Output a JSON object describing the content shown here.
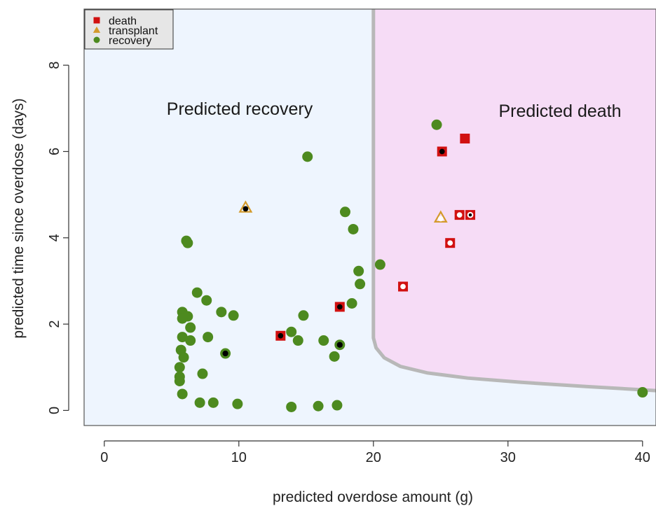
{
  "chart_data": {
    "type": "scatter",
    "xlabel": "predicted overdose amount (g)",
    "ylabel": "predicted time since overdose (days)",
    "xlim": [
      -1.5,
      41
    ],
    "ylim": [
      -0.35,
      9.3
    ],
    "xticks": [
      0,
      10,
      20,
      30,
      40
    ],
    "yticks": [
      0,
      2,
      4,
      6,
      8
    ],
    "region_labels": {
      "recovery": "Predicted recovery",
      "death": "Predicted death"
    },
    "colors": {
      "recovery_region": "#eef5fe",
      "death_region": "#f6dcf6",
      "boundary": "#b8b8b8",
      "death": "#d11111",
      "transplant": "#d49a2a",
      "recovery": "#4d8a1f"
    },
    "decision_boundary": {
      "x": [
        20.0,
        20.0,
        20.0,
        20.2,
        20.8,
        22.0,
        24.0,
        27.0,
        31.0,
        36.0,
        41.0
      ],
      "y": [
        9.3,
        4.0,
        1.68,
        1.45,
        1.22,
        1.02,
        0.87,
        0.75,
        0.65,
        0.55,
        0.46
      ]
    },
    "legend": {
      "position": "top-left",
      "entries": [
        {
          "label": "death",
          "marker": "square",
          "color": "#d11111"
        },
        {
          "label": "transplant",
          "marker": "triangle",
          "color": "#d49a2a"
        },
        {
          "label": "recovery",
          "marker": "circle",
          "color": "#4d8a1f"
        }
      ]
    },
    "series": [
      {
        "name": "death",
        "points": [
          {
            "x": 13.1,
            "y": 1.73,
            "inner": "black"
          },
          {
            "x": 17.5,
            "y": 2.4,
            "inner": "black"
          },
          {
            "x": 25.1,
            "y": 6.0,
            "inner": "black"
          },
          {
            "x": 26.8,
            "y": 6.3,
            "inner": "none"
          },
          {
            "x": 26.4,
            "y": 4.53,
            "inner": "white"
          },
          {
            "x": 27.2,
            "y": 4.53,
            "inner": "black_white"
          },
          {
            "x": 25.7,
            "y": 3.88,
            "inner": "white"
          },
          {
            "x": 22.2,
            "y": 2.87,
            "inner": "white"
          }
        ]
      },
      {
        "name": "transplant",
        "points": [
          {
            "x": 10.5,
            "y": 4.7,
            "inner": "black"
          },
          {
            "x": 25.0,
            "y": 4.47,
            "inner": "white"
          }
        ]
      },
      {
        "name": "recovery",
        "points": [
          {
            "x": 15.1,
            "y": 5.88
          },
          {
            "x": 24.7,
            "y": 6.62
          },
          {
            "x": 17.9,
            "y": 4.6
          },
          {
            "x": 18.5,
            "y": 4.2
          },
          {
            "x": 6.1,
            "y": 3.93
          },
          {
            "x": 6.2,
            "y": 3.88
          },
          {
            "x": 20.5,
            "y": 3.38
          },
          {
            "x": 18.9,
            "y": 3.23
          },
          {
            "x": 19.0,
            "y": 2.93
          },
          {
            "x": 6.9,
            "y": 2.73
          },
          {
            "x": 7.6,
            "y": 2.55
          },
          {
            "x": 18.4,
            "y": 2.48
          },
          {
            "x": 8.7,
            "y": 2.28
          },
          {
            "x": 9.6,
            "y": 2.2
          },
          {
            "x": 14.8,
            "y": 2.2
          },
          {
            "x": 5.8,
            "y": 2.28
          },
          {
            "x": 6.2,
            "y": 2.18
          },
          {
            "x": 5.8,
            "y": 2.13
          },
          {
            "x": 6.4,
            "y": 1.92
          },
          {
            "x": 5.8,
            "y": 1.7
          },
          {
            "x": 7.7,
            "y": 1.7
          },
          {
            "x": 13.9,
            "y": 1.82
          },
          {
            "x": 6.4,
            "y": 1.62
          },
          {
            "x": 14.4,
            "y": 1.62
          },
          {
            "x": 16.3,
            "y": 1.62
          },
          {
            "x": 5.7,
            "y": 1.4
          },
          {
            "x": 5.9,
            "y": 1.23
          },
          {
            "x": 17.1,
            "y": 1.25
          },
          {
            "x": 5.6,
            "y": 1.0
          },
          {
            "x": 7.3,
            "y": 0.85
          },
          {
            "x": 5.6,
            "y": 0.78
          },
          {
            "x": 5.6,
            "y": 0.68
          },
          {
            "x": 5.8,
            "y": 0.38
          },
          {
            "x": 7.1,
            "y": 0.18
          },
          {
            "x": 8.1,
            "y": 0.18
          },
          {
            "x": 9.9,
            "y": 0.15
          },
          {
            "x": 13.9,
            "y": 0.08
          },
          {
            "x": 15.9,
            "y": 0.1
          },
          {
            "x": 17.3,
            "y": 0.12
          },
          {
            "x": 40.0,
            "y": 0.42
          },
          {
            "x": 9.0,
            "y": 1.32,
            "inner": "black"
          },
          {
            "x": 17.5,
            "y": 1.52,
            "inner": "black"
          }
        ]
      }
    ]
  }
}
